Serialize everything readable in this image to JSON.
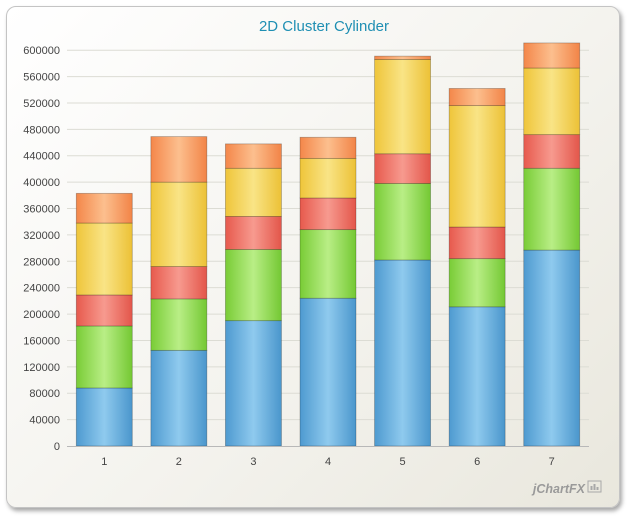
{
  "chart_data": {
    "type": "bar",
    "stacked": true,
    "title": "2D Cluster Cylinder",
    "xlabel": "",
    "ylabel": "",
    "categories": [
      "1",
      "2",
      "3",
      "4",
      "5",
      "6",
      "7"
    ],
    "ylim": [
      0,
      620000
    ],
    "yticks": [
      0,
      40000,
      80000,
      120000,
      160000,
      200000,
      240000,
      280000,
      320000,
      360000,
      400000,
      440000,
      480000,
      520000,
      560000,
      600000
    ],
    "ytick_labels": [
      "0",
      "40000",
      "80000",
      "120000",
      "160000",
      "200000",
      "240000",
      "280000",
      "320000",
      "360000",
      "400000",
      "440000",
      "480000",
      "520000",
      "560000",
      "600000"
    ],
    "grid": true,
    "legend": "none",
    "series": [
      {
        "values": [
          88000,
          145000,
          190000,
          224000,
          282000,
          211000,
          297000
        ],
        "color": "#5aa9dd"
      },
      {
        "values": [
          94000,
          78000,
          108000,
          104000,
          116000,
          73000,
          124000
        ],
        "color": "#8fdc4a"
      },
      {
        "values": [
          47000,
          49000,
          50000,
          48000,
          45000,
          48000,
          51000
        ],
        "color": "#ef6a5c"
      },
      {
        "values": [
          109000,
          128000,
          73000,
          60000,
          143000,
          184000,
          101000
        ],
        "color": "#f2cf4a"
      },
      {
        "values": [
          45000,
          69000,
          37000,
          32000,
          5000,
          26000,
          38000
        ],
        "color": "#f89a5c"
      }
    ]
  },
  "watermark": "jChartFX"
}
